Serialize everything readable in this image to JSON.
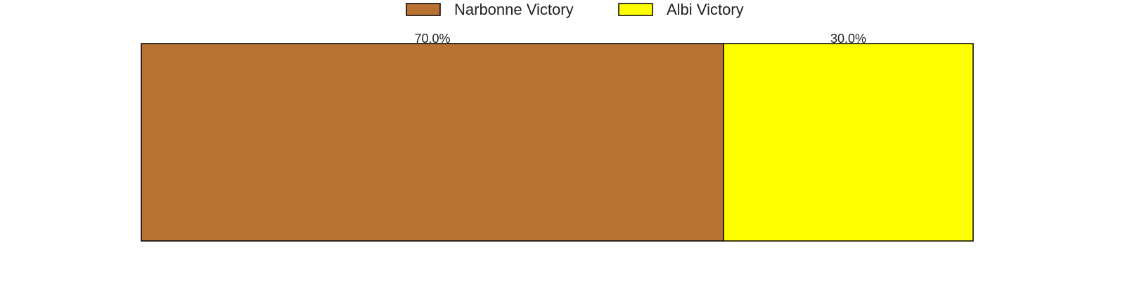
{
  "chart_data": {
    "type": "bar",
    "orientation": "horizontal",
    "stacked": true,
    "normalized_percent": true,
    "categories": [
      ""
    ],
    "series": [
      {
        "name": "Narbonne Victory",
        "values": [
          70.0
        ],
        "label": "70.0%",
        "color": "#b87333"
      },
      {
        "name": "Albi Victory",
        "values": [
          30.0
        ],
        "label": "30.0%",
        "color": "#ffff00"
      }
    ],
    "xlim": [
      0,
      100
    ],
    "axes_visible": false,
    "grid": false,
    "legend_position": "top-center",
    "edge_color": "#000000"
  }
}
